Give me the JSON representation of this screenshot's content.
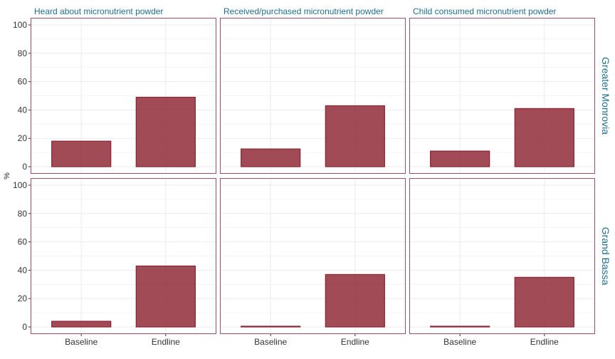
{
  "chart_data": {
    "type": "bar",
    "categories": [
      "Baseline",
      "Endline"
    ],
    "ylabel": "%",
    "ylim": [
      0,
      100
    ],
    "yticks": [
      0,
      20,
      40,
      60,
      80,
      100
    ],
    "columns": [
      "Heard about micronutrient powder",
      "Received/purchased micronutrient powder",
      "Child consumed micronutrient powder"
    ],
    "rows": [
      "Greater Monrovia",
      "Grand Bassa"
    ],
    "panels": [
      {
        "row": 0,
        "col": 0,
        "values": [
          18,
          49
        ]
      },
      {
        "row": 0,
        "col": 1,
        "values": [
          12.5,
          43
        ]
      },
      {
        "row": 0,
        "col": 2,
        "values": [
          11,
          41
        ]
      },
      {
        "row": 1,
        "col": 0,
        "values": [
          4,
          43
        ]
      },
      {
        "row": 1,
        "col": 1,
        "values": [
          0.5,
          37
        ]
      },
      {
        "row": 1,
        "col": 2,
        "values": [
          0.5,
          35
        ]
      }
    ],
    "bar_color": "#8b2331",
    "panel_border_color": "#9b4f6b",
    "grid": true
  }
}
